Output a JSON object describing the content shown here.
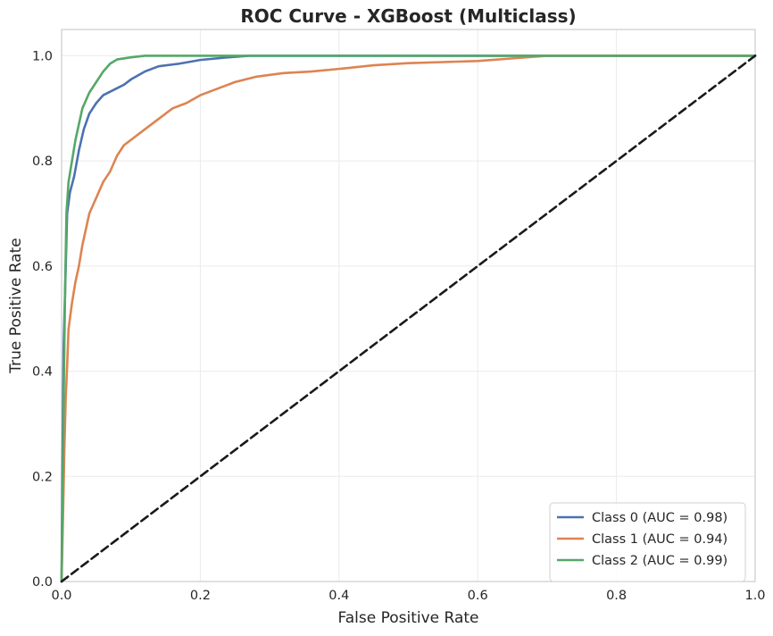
{
  "chart_data": {
    "type": "line",
    "title": "ROC Curve - XGBoost (Multiclass)",
    "xlabel": "False Positive Rate",
    "ylabel": "True Positive Rate",
    "xlim": [
      0.0,
      1.0
    ],
    "ylim": [
      0.0,
      1.05
    ],
    "xticks": [
      "0.0",
      "0.2",
      "0.4",
      "0.6",
      "0.8",
      "1.0"
    ],
    "yticks": [
      "0.0",
      "0.2",
      "0.4",
      "0.6",
      "0.8",
      "1.0"
    ],
    "grid": true,
    "legend_position": "bottom-right",
    "series": [
      {
        "name": "Class 0 (AUC = 0.98)",
        "color": "#4c72b0",
        "points": [
          [
            0,
            0
          ],
          [
            0.001,
            0.2
          ],
          [
            0.003,
            0.45
          ],
          [
            0.006,
            0.6
          ],
          [
            0.008,
            0.7
          ],
          [
            0.012,
            0.74
          ],
          [
            0.018,
            0.77
          ],
          [
            0.025,
            0.82
          ],
          [
            0.032,
            0.86
          ],
          [
            0.04,
            0.89
          ],
          [
            0.05,
            0.91
          ],
          [
            0.06,
            0.925
          ],
          [
            0.075,
            0.935
          ],
          [
            0.09,
            0.945
          ],
          [
            0.1,
            0.955
          ],
          [
            0.12,
            0.97
          ],
          [
            0.14,
            0.98
          ],
          [
            0.17,
            0.985
          ],
          [
            0.2,
            0.992
          ],
          [
            0.24,
            0.997
          ],
          [
            0.27,
            1.0
          ],
          [
            1.0,
            1.0
          ]
        ]
      },
      {
        "name": "Class 1 (AUC = 0.94)",
        "color": "#dd8452",
        "points": [
          [
            0,
            0
          ],
          [
            0.002,
            0.12
          ],
          [
            0.004,
            0.25
          ],
          [
            0.006,
            0.35
          ],
          [
            0.008,
            0.41
          ],
          [
            0.01,
            0.48
          ],
          [
            0.015,
            0.53
          ],
          [
            0.02,
            0.57
          ],
          [
            0.025,
            0.6
          ],
          [
            0.03,
            0.64
          ],
          [
            0.035,
            0.67
          ],
          [
            0.04,
            0.7
          ],
          [
            0.05,
            0.73
          ],
          [
            0.06,
            0.76
          ],
          [
            0.07,
            0.78
          ],
          [
            0.08,
            0.81
          ],
          [
            0.09,
            0.83
          ],
          [
            0.1,
            0.84
          ],
          [
            0.12,
            0.86
          ],
          [
            0.14,
            0.88
          ],
          [
            0.16,
            0.9
          ],
          [
            0.18,
            0.91
          ],
          [
            0.2,
            0.925
          ],
          [
            0.22,
            0.935
          ],
          [
            0.25,
            0.95
          ],
          [
            0.28,
            0.96
          ],
          [
            0.32,
            0.967
          ],
          [
            0.36,
            0.97
          ],
          [
            0.4,
            0.975
          ],
          [
            0.45,
            0.982
          ],
          [
            0.5,
            0.986
          ],
          [
            0.55,
            0.988
          ],
          [
            0.6,
            0.99
          ],
          [
            0.65,
            0.995
          ],
          [
            0.7,
            1.0
          ],
          [
            1.0,
            1.0
          ]
        ]
      },
      {
        "name": "Class 2 (AUC = 0.99)",
        "color": "#55a868",
        "points": [
          [
            0,
            0
          ],
          [
            0.001,
            0.12
          ],
          [
            0.003,
            0.35
          ],
          [
            0.005,
            0.55
          ],
          [
            0.007,
            0.7
          ],
          [
            0.01,
            0.76
          ],
          [
            0.015,
            0.8
          ],
          [
            0.02,
            0.84
          ],
          [
            0.025,
            0.87
          ],
          [
            0.03,
            0.9
          ],
          [
            0.04,
            0.93
          ],
          [
            0.05,
            0.95
          ],
          [
            0.06,
            0.97
          ],
          [
            0.07,
            0.985
          ],
          [
            0.08,
            0.993
          ],
          [
            0.1,
            0.997
          ],
          [
            0.12,
            1.0
          ],
          [
            1.0,
            1.0
          ]
        ]
      },
      {
        "name": "",
        "color": "#1a1a1a",
        "dashed": true,
        "points": [
          [
            0,
            0
          ],
          [
            1,
            1
          ]
        ]
      }
    ]
  }
}
